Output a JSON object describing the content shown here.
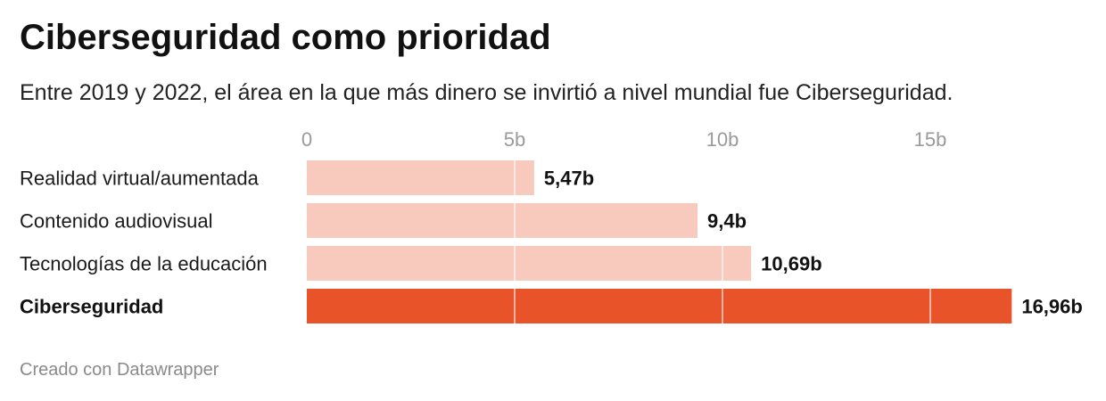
{
  "header": {
    "title": "Ciberseguridad como prioridad",
    "subtitle": "Entre 2019 y 2022, el área en la que más dinero se invirtió a nivel mundial fue Ciberseguridad."
  },
  "footer": {
    "credit": "Creado con Datawrapper"
  },
  "colors": {
    "bar": "#f7cabd",
    "bar_highlight": "#e8532a",
    "grid": "#ffffff"
  },
  "chart_data": {
    "type": "bar",
    "orientation": "horizontal",
    "categories": [
      "Realidad virtual/aumentada",
      "Contenido audiovisual",
      "Tecnologías de la educación",
      "Ciberseguridad"
    ],
    "values": [
      5.47,
      9.4,
      10.69,
      16.96
    ],
    "value_labels": [
      "5,47b",
      "9,4b",
      "10,69b",
      "16,96b"
    ],
    "highlight": "Ciberseguridad",
    "xlim": [
      0,
      17
    ],
    "xticks": [
      0,
      5,
      10,
      15
    ],
    "xtick_labels": [
      "0",
      "5b",
      "10b",
      "15b"
    ],
    "grid": true,
    "legend": "none"
  }
}
